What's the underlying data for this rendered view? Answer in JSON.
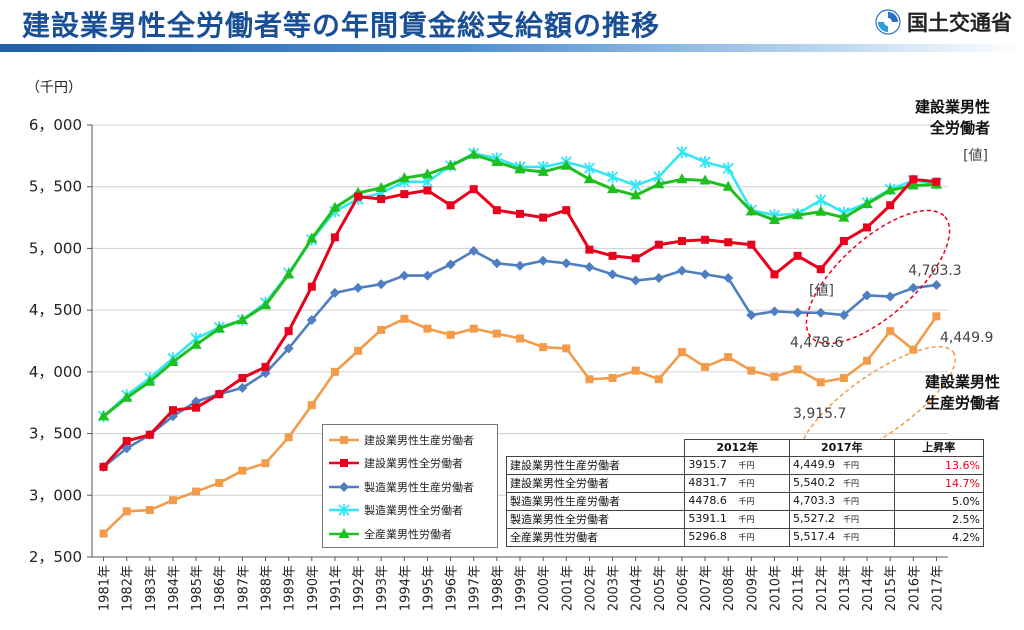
{
  "header": {
    "title": "建設業男性全労働者等の年間賃金総支給額の推移",
    "org_name": "国土交通省"
  },
  "colors": {
    "const_prod": "#f29b4b",
    "const_all": "#e8001c",
    "mfg_prod": "#4f7fc1",
    "mfg_all": "#33e6f5",
    "all_ind": "#1fbf1f"
  },
  "chart_data": {
    "type": "line",
    "unit_label": "（千円）",
    "ylim": [
      2500,
      6000
    ],
    "yticks": [
      "2，500",
      "3，000",
      "3，500",
      "4，000",
      "4，500",
      "5，000",
      "5，500",
      "6，000"
    ],
    "categories": [
      "1981年",
      "1982年",
      "1983年",
      "1984年",
      "1985年",
      "1986年",
      "1987年",
      "1988年",
      "1989年",
      "1990年",
      "1991年",
      "1992年",
      "1993年",
      "1994年",
      "1995年",
      "1996年",
      "1997年",
      "1998年",
      "1999年",
      "2000年",
      "2001年",
      "2002年",
      "2003年",
      "2004年",
      "2005年",
      "2006年",
      "2007年",
      "2008年",
      "2009年",
      "2010年",
      "2011年",
      "2012年",
      "2013年",
      "2014年",
      "2015年",
      "2016年",
      "2017年"
    ],
    "legend_position": "bottom-center",
    "series": [
      {
        "key": "const_prod",
        "name": "建設業男性生産労働者",
        "marker": "square",
        "values": [
          2690,
          2870,
          2880,
          2960,
          3030,
          3100,
          3200,
          3260,
          3470,
          3730,
          4000,
          4170,
          4340,
          4430,
          4350,
          4300,
          4350,
          4310,
          4270,
          4200,
          4190,
          3940,
          3950,
          4010,
          3940,
          4160,
          4040,
          4120,
          4010,
          3960,
          4020,
          3915.7,
          3950,
          4090,
          4330,
          4180,
          4449.9
        ]
      },
      {
        "key": "const_all",
        "name": "建設業男性全労働者",
        "marker": "square",
        "values": [
          3230,
          3440,
          3490,
          3690,
          3710,
          3820,
          3950,
          4040,
          4330,
          4690,
          5090,
          5420,
          5400,
          5440,
          5470,
          5350,
          5480,
          5310,
          5280,
          5250,
          5310,
          4990,
          4940,
          4920,
          5030,
          5060,
          5070,
          5050,
          5030,
          4790,
          4940,
          4831.7,
          5060,
          5170,
          5350,
          5560,
          5540.2
        ]
      },
      {
        "key": "mfg_prod",
        "name": "製造業男性生産労働者",
        "marker": "diamond",
        "values": [
          3230,
          3380,
          3490,
          3640,
          3760,
          3820,
          3870,
          3990,
          4190,
          4420,
          4640,
          4680,
          4710,
          4780,
          4780,
          4870,
          4980,
          4880,
          4860,
          4900,
          4880,
          4850,
          4790,
          4740,
          4760,
          4820,
          4790,
          4760,
          4460,
          4490,
          4480,
          4478.6,
          4460,
          4620,
          4610,
          4680,
          4703.3
        ]
      },
      {
        "key": "mfg_all",
        "name": "製造業男性全労働者",
        "marker": "star",
        "values": [
          3640,
          3810,
          3950,
          4110,
          4270,
          4360,
          4420,
          4560,
          4800,
          5070,
          5300,
          5400,
          5450,
          5540,
          5540,
          5670,
          5770,
          5730,
          5660,
          5660,
          5700,
          5650,
          5580,
          5510,
          5580,
          5780,
          5700,
          5650,
          5310,
          5270,
          5280,
          5391.1,
          5290,
          5370,
          5480,
          5550,
          5527.2
        ]
      },
      {
        "key": "all_ind",
        "name": "全産業男性労働者",
        "marker": "triangle",
        "values": [
          3640,
          3790,
          3920,
          4080,
          4220,
          4350,
          4420,
          4540,
          4790,
          5080,
          5330,
          5450,
          5490,
          5570,
          5600,
          5670,
          5760,
          5700,
          5640,
          5620,
          5670,
          5560,
          5480,
          5430,
          5520,
          5560,
          5550,
          5500,
          5300,
          5230,
          5270,
          5296.8,
          5250,
          5360,
          5470,
          5510,
          5517.4
        ]
      }
    ],
    "annotations": {
      "const_all_title": "建設業男性\n全労働者",
      "const_all_val": "[値]",
      "const_all_val2": "[値]",
      "const_prod_title": "建設業男性\n生産労働者",
      "mfg_prod_2017": "4,703.3",
      "mfg_prod_2012": "4,478.6",
      "const_prod_2017": "4,449.9",
      "const_prod_2012": "3,915.7"
    }
  },
  "summary_table": {
    "headers": [
      "",
      "2012年",
      "2017年",
      "上昇率"
    ],
    "unit": "千円",
    "rows": [
      {
        "label": "建設業男性生産労働者",
        "v2012": "3915.7",
        "v2017": "4,449.9",
        "rate": "13.6%",
        "highlight": true
      },
      {
        "label": "建設業男性全労働者",
        "v2012": "4831.7",
        "v2017": "5,540.2",
        "rate": "14.7%",
        "highlight": true
      },
      {
        "label": "製造業男性生産労働者",
        "v2012": "4478.6",
        "v2017": "4,703.3",
        "rate": "5.0%",
        "highlight": false
      },
      {
        "label": "製造業男性全労働者",
        "v2012": "5391.1",
        "v2017": "5,527.2",
        "rate": "2.5%",
        "highlight": false
      },
      {
        "label": "全産業男性労働者",
        "v2012": "5296.8",
        "v2017": "5,517.4",
        "rate": "4.2%",
        "highlight": false
      }
    ]
  }
}
